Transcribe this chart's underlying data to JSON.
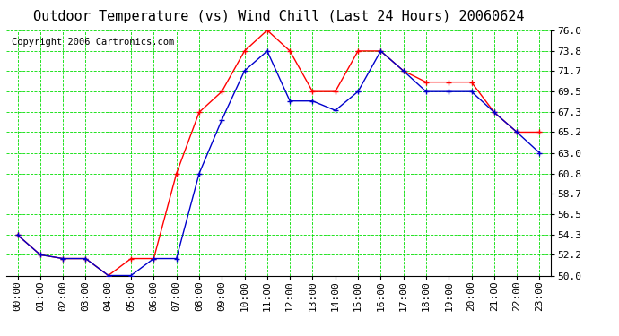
{
  "title": "Outdoor Temperature (vs) Wind Chill (Last 24 Hours) 20060624",
  "copyright": "Copyright 2006 Cartronics.com",
  "x_labels": [
    "00:00",
    "01:00",
    "02:00",
    "03:00",
    "04:00",
    "05:00",
    "06:00",
    "07:00",
    "08:00",
    "09:00",
    "10:00",
    "11:00",
    "12:00",
    "13:00",
    "14:00",
    "15:00",
    "16:00",
    "17:00",
    "18:00",
    "19:00",
    "20:00",
    "21:00",
    "22:00",
    "23:00"
  ],
  "temp_red": [
    54.3,
    52.2,
    51.8,
    51.8,
    50.0,
    51.8,
    51.8,
    60.8,
    67.3,
    69.5,
    73.8,
    76.0,
    73.8,
    69.5,
    69.5,
    73.8,
    73.8,
    71.7,
    70.5,
    70.5,
    70.5,
    67.3,
    65.2,
    65.2
  ],
  "temp_blue": [
    54.3,
    52.2,
    51.8,
    51.8,
    50.0,
    50.0,
    51.8,
    51.8,
    60.8,
    66.5,
    71.7,
    73.8,
    68.5,
    68.5,
    67.5,
    69.5,
    73.8,
    71.7,
    69.5,
    69.5,
    69.5,
    67.3,
    65.2,
    63.0
  ],
  "ylim": [
    50.0,
    76.0
  ],
  "yticks": [
    50.0,
    52.2,
    54.3,
    56.5,
    58.7,
    60.8,
    63.0,
    65.2,
    67.3,
    69.5,
    71.7,
    73.8,
    76.0
  ],
  "bg_color": "#ffffff",
  "plot_bg": "#ffffff",
  "grid_color": "#00dd00",
  "red_color": "#ff0000",
  "blue_color": "#0000cc",
  "title_fontsize": 11,
  "tick_fontsize": 8,
  "copyright_fontsize": 7.5
}
